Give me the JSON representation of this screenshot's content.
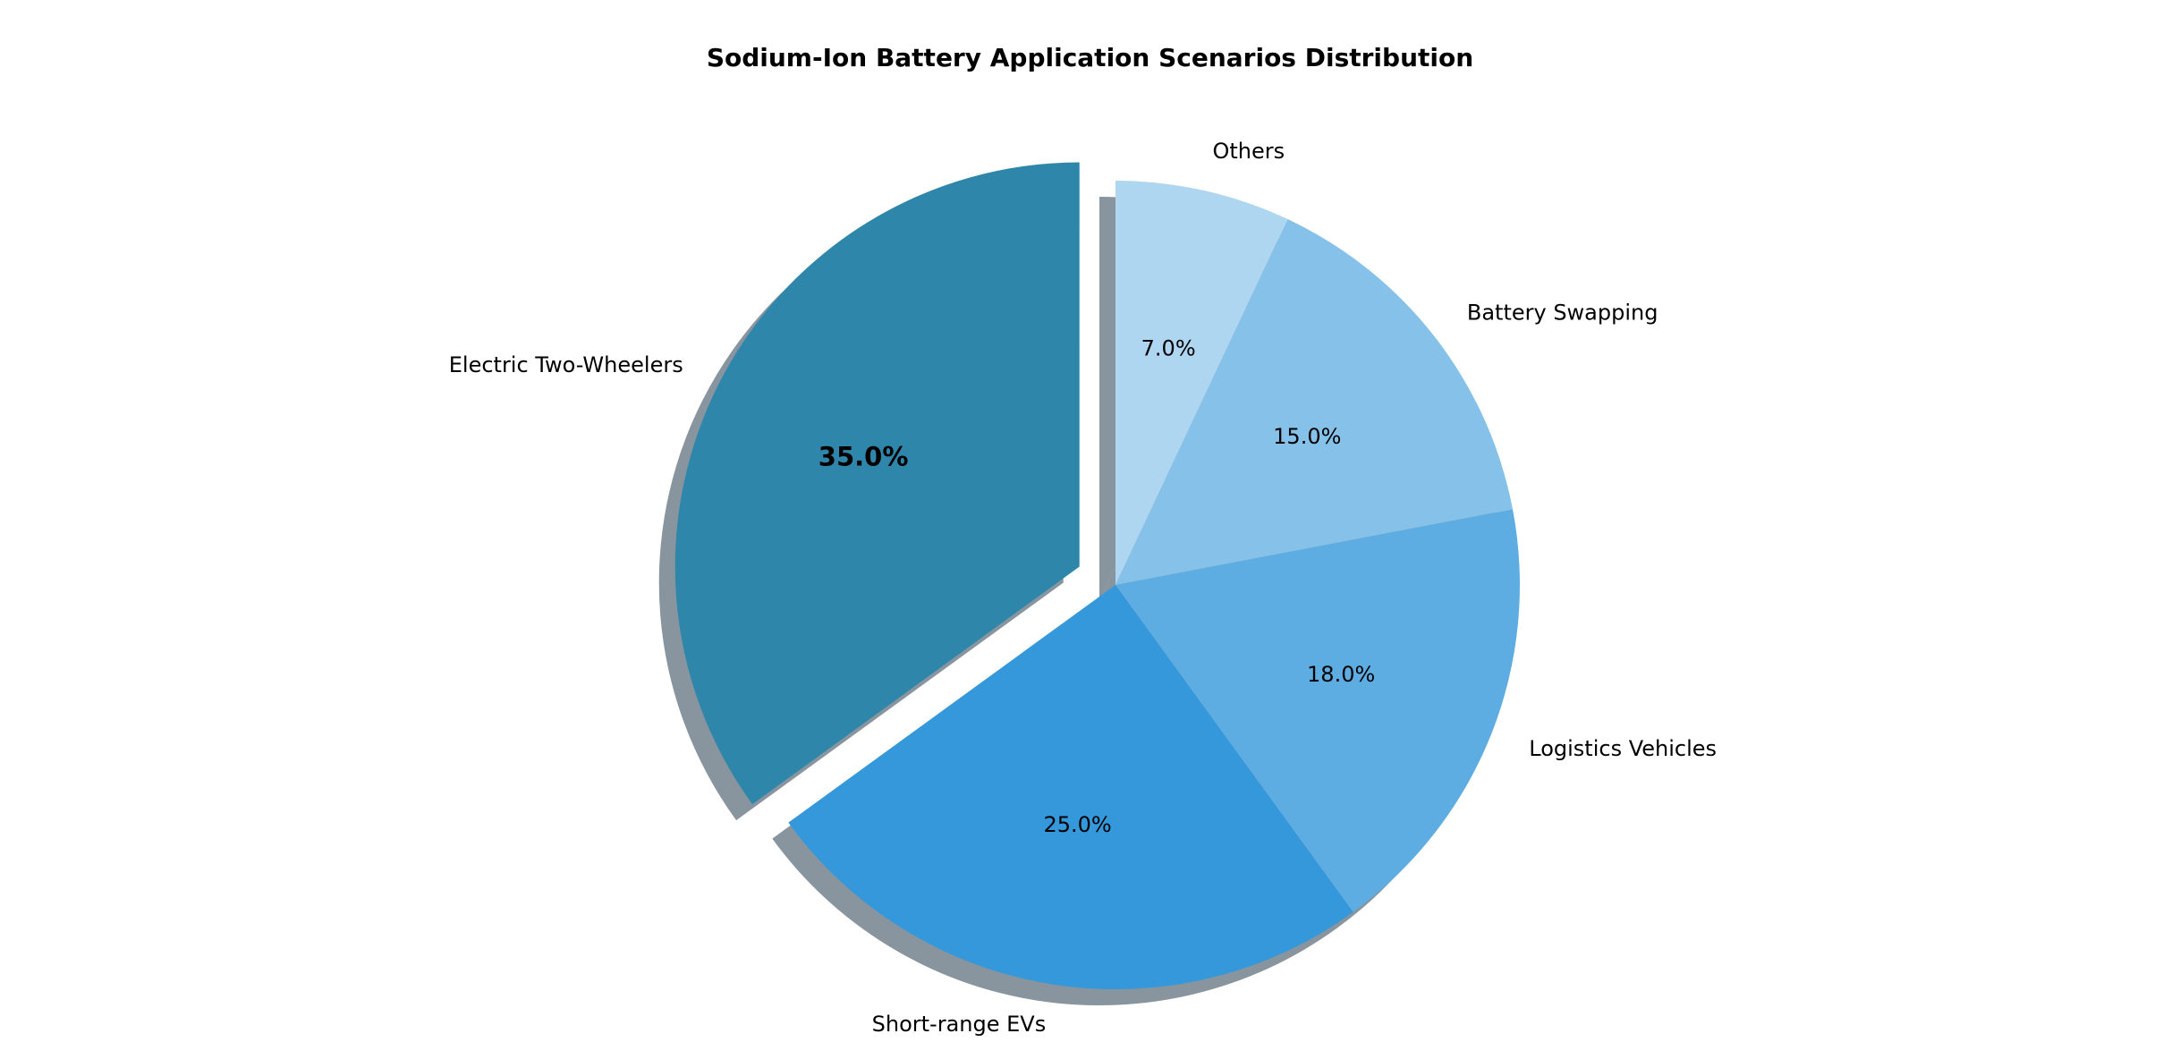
{
  "chart_data": {
    "type": "pie",
    "title": "Sodium-Ion Battery Application Scenarios Distribution",
    "start_angle_deg": 90,
    "direction": "counterclockwise",
    "shadow": true,
    "slices": [
      {
        "label": "Electric Two-Wheelers",
        "value": 35.0,
        "pct_text": "35.0%",
        "color": "#2e86ab",
        "exploded": true,
        "bold_pct": true
      },
      {
        "label": "Short-range EVs",
        "value": 25.0,
        "pct_text": "25.0%",
        "color": "#3498db",
        "exploded": false,
        "bold_pct": false
      },
      {
        "label": "Logistics Vehicles",
        "value": 18.0,
        "pct_text": "18.0%",
        "color": "#5dade2",
        "exploded": false,
        "bold_pct": false
      },
      {
        "label": "Battery Swapping",
        "value": 15.0,
        "pct_text": "15.0%",
        "color": "#85c1e9",
        "exploded": false,
        "bold_pct": false
      },
      {
        "label": "Others",
        "value": 7.0,
        "pct_text": "7.0%",
        "color": "#aed6f1",
        "exploded": false,
        "bold_pct": false
      }
    ]
  }
}
